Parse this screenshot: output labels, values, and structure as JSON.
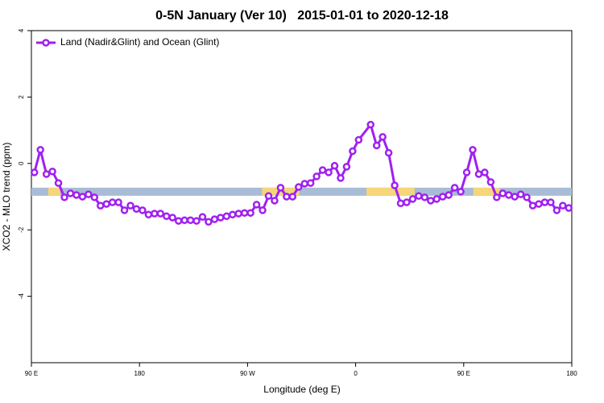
{
  "chart_data": {
    "type": "line",
    "title": "0-5N January (Ver 10)   2015-01-01 to 2020-12-18",
    "xlabel": "Longitude (deg E)",
    "ylabel": "XCO2 - MLO trend (ppm)",
    "xlim": [
      90,
      540
    ],
    "xticks": [
      {
        "value": 90,
        "label": "90 E"
      },
      {
        "value": 180,
        "label": "180"
      },
      {
        "value": 270,
        "label": "90 W"
      },
      {
        "value": 360,
        "label": "0"
      },
      {
        "value": 450,
        "label": "90 E"
      },
      {
        "value": 540,
        "label": "180"
      }
    ],
    "ylim": [
      -6,
      4
    ],
    "yticks": [
      -4,
      -2,
      0,
      2,
      4
    ],
    "legend_position": "top-left",
    "surface_band": {
      "y": -0.85,
      "color": "#a9bcd6",
      "highlight_color": "#f5d67a",
      "highlights": [
        [
          104,
          114
        ],
        [
          282,
          313
        ],
        [
          369,
          409
        ],
        [
          458,
          480
        ]
      ]
    },
    "series": [
      {
        "name": "Land (Nadir&Glint) and Ocean (Glint)",
        "color": "#a020f0",
        "x": [
          92.5,
          97.5,
          102.5,
          107.5,
          112.5,
          117.5,
          122.5,
          127.5,
          132.5,
          137.5,
          142.5,
          147.5,
          152.5,
          157.5,
          162.5,
          167.5,
          172.5,
          177.5,
          182.5,
          187.5,
          192.5,
          197.5,
          202.5,
          207.5,
          212.5,
          217.5,
          222.5,
          227.5,
          232.5,
          237.5,
          242.5,
          247.5,
          252.5,
          257.5,
          262.5,
          267.5,
          272.5,
          277.5,
          282.5,
          287.5,
          292.5,
          297.5,
          302.5,
          307.5,
          312.5,
          317.5,
          322.5,
          327.5,
          332.5,
          337.5,
          342.5,
          347.5,
          352.5,
          357.5,
          362.5,
          372.5,
          377.5,
          382.5,
          387.5,
          392.5,
          397.5,
          402.5,
          407.5,
          412.5,
          417.5,
          422.5,
          427.5,
          432.5,
          437.5,
          442.5,
          447.5,
          452.5,
          457.5,
          462.5,
          467.5,
          472.5,
          477.5,
          482.5,
          487.5,
          492.5,
          497.5,
          502.5,
          507.5,
          512.5,
          517.5,
          522.5,
          527.5,
          532.5,
          537.5
        ],
        "values": [
          -0.27,
          0.41,
          -0.32,
          -0.24,
          -0.59,
          -1.02,
          -0.9,
          -0.95,
          -1.0,
          -0.93,
          -1.02,
          -1.27,
          -1.22,
          -1.17,
          -1.17,
          -1.41,
          -1.27,
          -1.37,
          -1.41,
          -1.54,
          -1.51,
          -1.51,
          -1.59,
          -1.63,
          -1.73,
          -1.71,
          -1.71,
          -1.73,
          -1.61,
          -1.76,
          -1.68,
          -1.63,
          -1.59,
          -1.54,
          -1.51,
          -1.49,
          -1.49,
          -1.24,
          -1.41,
          -0.98,
          -1.12,
          -0.73,
          -1.0,
          -1.0,
          -0.71,
          -0.61,
          -0.59,
          -0.39,
          -0.2,
          -0.27,
          -0.07,
          -0.44,
          -0.1,
          0.37,
          0.71,
          1.17,
          0.54,
          0.8,
          0.32,
          -0.66,
          -1.2,
          -1.17,
          -1.07,
          -0.98,
          -1.02,
          -1.12,
          -1.07,
          -1.0,
          -0.95,
          -0.73,
          -0.85,
          -0.27,
          0.41,
          -0.32,
          -0.27,
          -0.56,
          -1.02,
          -0.9,
          -0.95,
          -1.0,
          -0.93,
          -1.02,
          -1.27,
          -1.22,
          -1.17,
          -1.17,
          -1.41,
          -1.27,
          -1.34
        ]
      }
    ]
  }
}
